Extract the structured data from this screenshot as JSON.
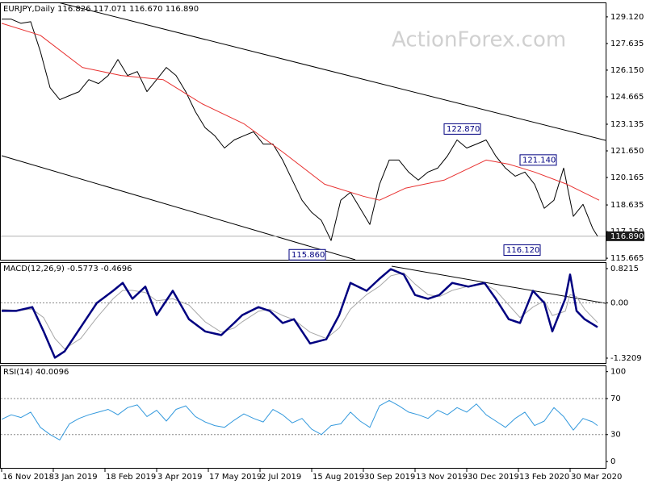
{
  "watermark": "ActionForex.com",
  "chart_data": [
    {
      "type": "line",
      "title": "EURJPY,Daily  116.826 117.071 116.670 116.890",
      "xlim": [
        0,
        372
      ],
      "ylim": [
        115.58,
        129.88
      ],
      "yticks": [
        {
          "value": 129.12,
          "label": "129.120"
        },
        127.635,
        {
          "value": 126.15,
          "label": "126.150"
        },
        124.665,
        123.135,
        {
          "value": 121.65,
          "label": "121.650"
        },
        120.165,
        118.635,
        {
          "value": 117.15,
          "label": "117.150"
        },
        115.665
      ],
      "series": [
        {
          "color": "#000000",
          "x": [
            0,
            6,
            12,
            18,
            24,
            30,
            36,
            42,
            48,
            54,
            60,
            66,
            72,
            78,
            84,
            90,
            96,
            102,
            108,
            114,
            120,
            126,
            132,
            138,
            144,
            150,
            156,
            162,
            168,
            174,
            180,
            186,
            192,
            198,
            204,
            210,
            216,
            222,
            228,
            234,
            240,
            246,
            252,
            258,
            264,
            270,
            276,
            282,
            288,
            294,
            300,
            306,
            312,
            318,
            324,
            330,
            336,
            342,
            348,
            354,
            360,
            366,
            369
          ],
          "values": [
            128.99,
            128.99,
            128.76,
            128.85,
            127.19,
            125.17,
            124.5,
            124.73,
            124.95,
            125.62,
            125.4,
            125.85,
            126.74,
            125.85,
            126.07,
            124.95,
            125.62,
            126.3,
            125.85,
            124.95,
            123.83,
            122.94,
            122.49,
            121.81,
            122.26,
            122.49,
            122.71,
            122.03,
            122.03,
            121.14,
            120.02,
            118.9,
            118.22,
            117.77,
            116.65,
            118.9,
            119.34,
            118.45,
            117.55,
            119.79,
            121.14,
            121.14,
            120.47,
            120.02,
            120.47,
            120.69,
            121.36,
            122.26,
            121.81,
            122.03,
            122.26,
            121.36,
            120.69,
            120.24,
            120.47,
            119.79,
            118.45,
            118.9,
            120.69,
            118.0,
            118.67,
            117.33,
            116.89
          ]
        },
        {
          "color": "#e8302f",
          "x": [
            0,
            24,
            50,
            74,
            100,
            124,
            150,
            174,
            200,
            224,
            234,
            250,
            274,
            300,
            314,
            330,
            350,
            370
          ],
          "values": [
            128.76,
            128.09,
            126.3,
            125.85,
            125.62,
            124.28,
            123.16,
            121.59,
            119.79,
            119.12,
            118.9,
            119.57,
            120.02,
            121.14,
            120.91,
            120.47,
            119.79,
            118.9
          ]
        }
      ],
      "annotations": [
        {
          "label": "122.870",
          "value": 122.87,
          "x": 297
        },
        {
          "label": "121.140",
          "value": 121.14,
          "x": 344
        },
        {
          "label": "115.860",
          "value": 115.86,
          "x": 201
        },
        {
          "label": "116.120",
          "value": 116.12,
          "x": 334
        }
      ],
      "last": {
        "value": 116.89,
        "label": "116.890"
      }
    },
    {
      "type": "line",
      "title": "MACD(12,26,9) -0.5773 -0.4696",
      "xlim": [
        0,
        372
      ],
      "ylim": [
        -1.437,
        0.956
      ],
      "yticks": [
        0.8215,
        {
          "value": 0,
          "label": "0.00"
        },
        -1.3209
      ],
      "levels": [
        0
      ],
      "x": [
        0,
        9,
        19,
        26,
        33,
        39,
        49,
        59,
        69,
        75,
        81,
        89,
        96,
        106,
        116,
        126,
        136,
        144,
        149,
        159,
        166,
        174,
        181,
        191,
        201,
        209,
        216,
        226,
        234,
        241,
        249,
        256,
        264,
        271,
        279,
        289,
        299,
        306,
        314,
        321,
        329,
        336,
        341,
        349,
        352,
        356,
        361,
        369
      ],
      "series": [
        {
          "color": "#a8a8a8",
          "values": [
            -0.15,
            -0.18,
            -0.15,
            -0.35,
            -0.85,
            -1.1,
            -0.85,
            -0.35,
            0.1,
            0.3,
            0.3,
            0.25,
            0.05,
            0.1,
            -0.05,
            -0.45,
            -0.7,
            -0.6,
            -0.45,
            -0.2,
            -0.15,
            -0.3,
            -0.4,
            -0.7,
            -0.85,
            -0.6,
            -0.15,
            0.2,
            0.4,
            0.65,
            0.72,
            0.45,
            0.2,
            0.15,
            0.3,
            0.4,
            0.45,
            0.3,
            -0.05,
            -0.35,
            -0.1,
            0.05,
            -0.3,
            -0.2,
            0.2,
            0.15,
            -0.15,
            -0.47
          ]
        },
        {
          "color": "#000080",
          "values": [
            -0.19,
            -0.19,
            -0.1,
            -0.68,
            -1.31,
            -1.16,
            -0.58,
            0,
            0.29,
            0.48,
            0.1,
            0.39,
            -0.29,
            0.29,
            -0.39,
            -0.68,
            -0.77,
            -0.48,
            -0.29,
            -0.1,
            -0.19,
            -0.48,
            -0.39,
            -0.97,
            -0.87,
            -0.29,
            0.48,
            0.29,
            0.58,
            0.81,
            0.68,
            0.19,
            0.1,
            0.19,
            0.48,
            0.39,
            0.48,
            0.1,
            -0.39,
            -0.48,
            0.29,
            0,
            -0.68,
            0.1,
            0.68,
            -0.19,
            -0.39,
            -0.58
          ]
        }
      ]
    },
    {
      "type": "line",
      "title": "RSI(14) 40.0096",
      "xlim": [
        0,
        372
      ],
      "ylim": [
        -7,
        106
      ],
      "yticks": [
        100,
        70,
        30,
        0
      ],
      "levels": [
        70,
        30
      ],
      "x": [
        0,
        6,
        12,
        18,
        24,
        30,
        36,
        42,
        48,
        54,
        60,
        66,
        72,
        78,
        84,
        90,
        96,
        102,
        108,
        114,
        120,
        126,
        132,
        138,
        144,
        150,
        156,
        162,
        168,
        174,
        180,
        186,
        192,
        198,
        204,
        210,
        216,
        222,
        228,
        234,
        240,
        246,
        252,
        258,
        264,
        270,
        276,
        282,
        288,
        294,
        300,
        306,
        312,
        318,
        324,
        330,
        336,
        342,
        348,
        354,
        360,
        366,
        369
      ],
      "xticks": [
        {
          "value": 0,
          "label": "16 Nov 2018"
        },
        {
          "value": 32,
          "label": "3 Jan 2019"
        },
        {
          "value": 64,
          "label": "18 Feb 2019"
        },
        {
          "value": 96,
          "label": "3 Apr 2019"
        },
        {
          "value": 128,
          "label": "17 May 2019"
        },
        {
          "value": 160,
          "label": "2 Jul 2019"
        },
        {
          "value": 192,
          "label": "15 Aug 2019"
        },
        {
          "value": 224,
          "label": "30 Sep 2019"
        },
        {
          "value": 256,
          "label": "13 Nov 2019"
        },
        {
          "value": 288,
          "label": "30 Dec 2019"
        },
        {
          "value": 320,
          "label": "13 Feb 2020"
        },
        {
          "value": 352,
          "label": "30 Mar 2020"
        }
      ],
      "series": [
        {
          "color": "#3399dd",
          "values": [
            47,
            52,
            49,
            55,
            38,
            30,
            24,
            42,
            48,
            52,
            55,
            58,
            52,
            60,
            63,
            50,
            57,
            45,
            58,
            62,
            50,
            44,
            40,
            38,
            46,
            53,
            48,
            44,
            58,
            52,
            43,
            48,
            36,
            30,
            40,
            42,
            55,
            45,
            38,
            62,
            68,
            62,
            55,
            52,
            48,
            57,
            52,
            60,
            55,
            64,
            52,
            45,
            38,
            48,
            55,
            40,
            45,
            60,
            50,
            35,
            48,
            44,
            40.01
          ]
        }
      ]
    }
  ]
}
